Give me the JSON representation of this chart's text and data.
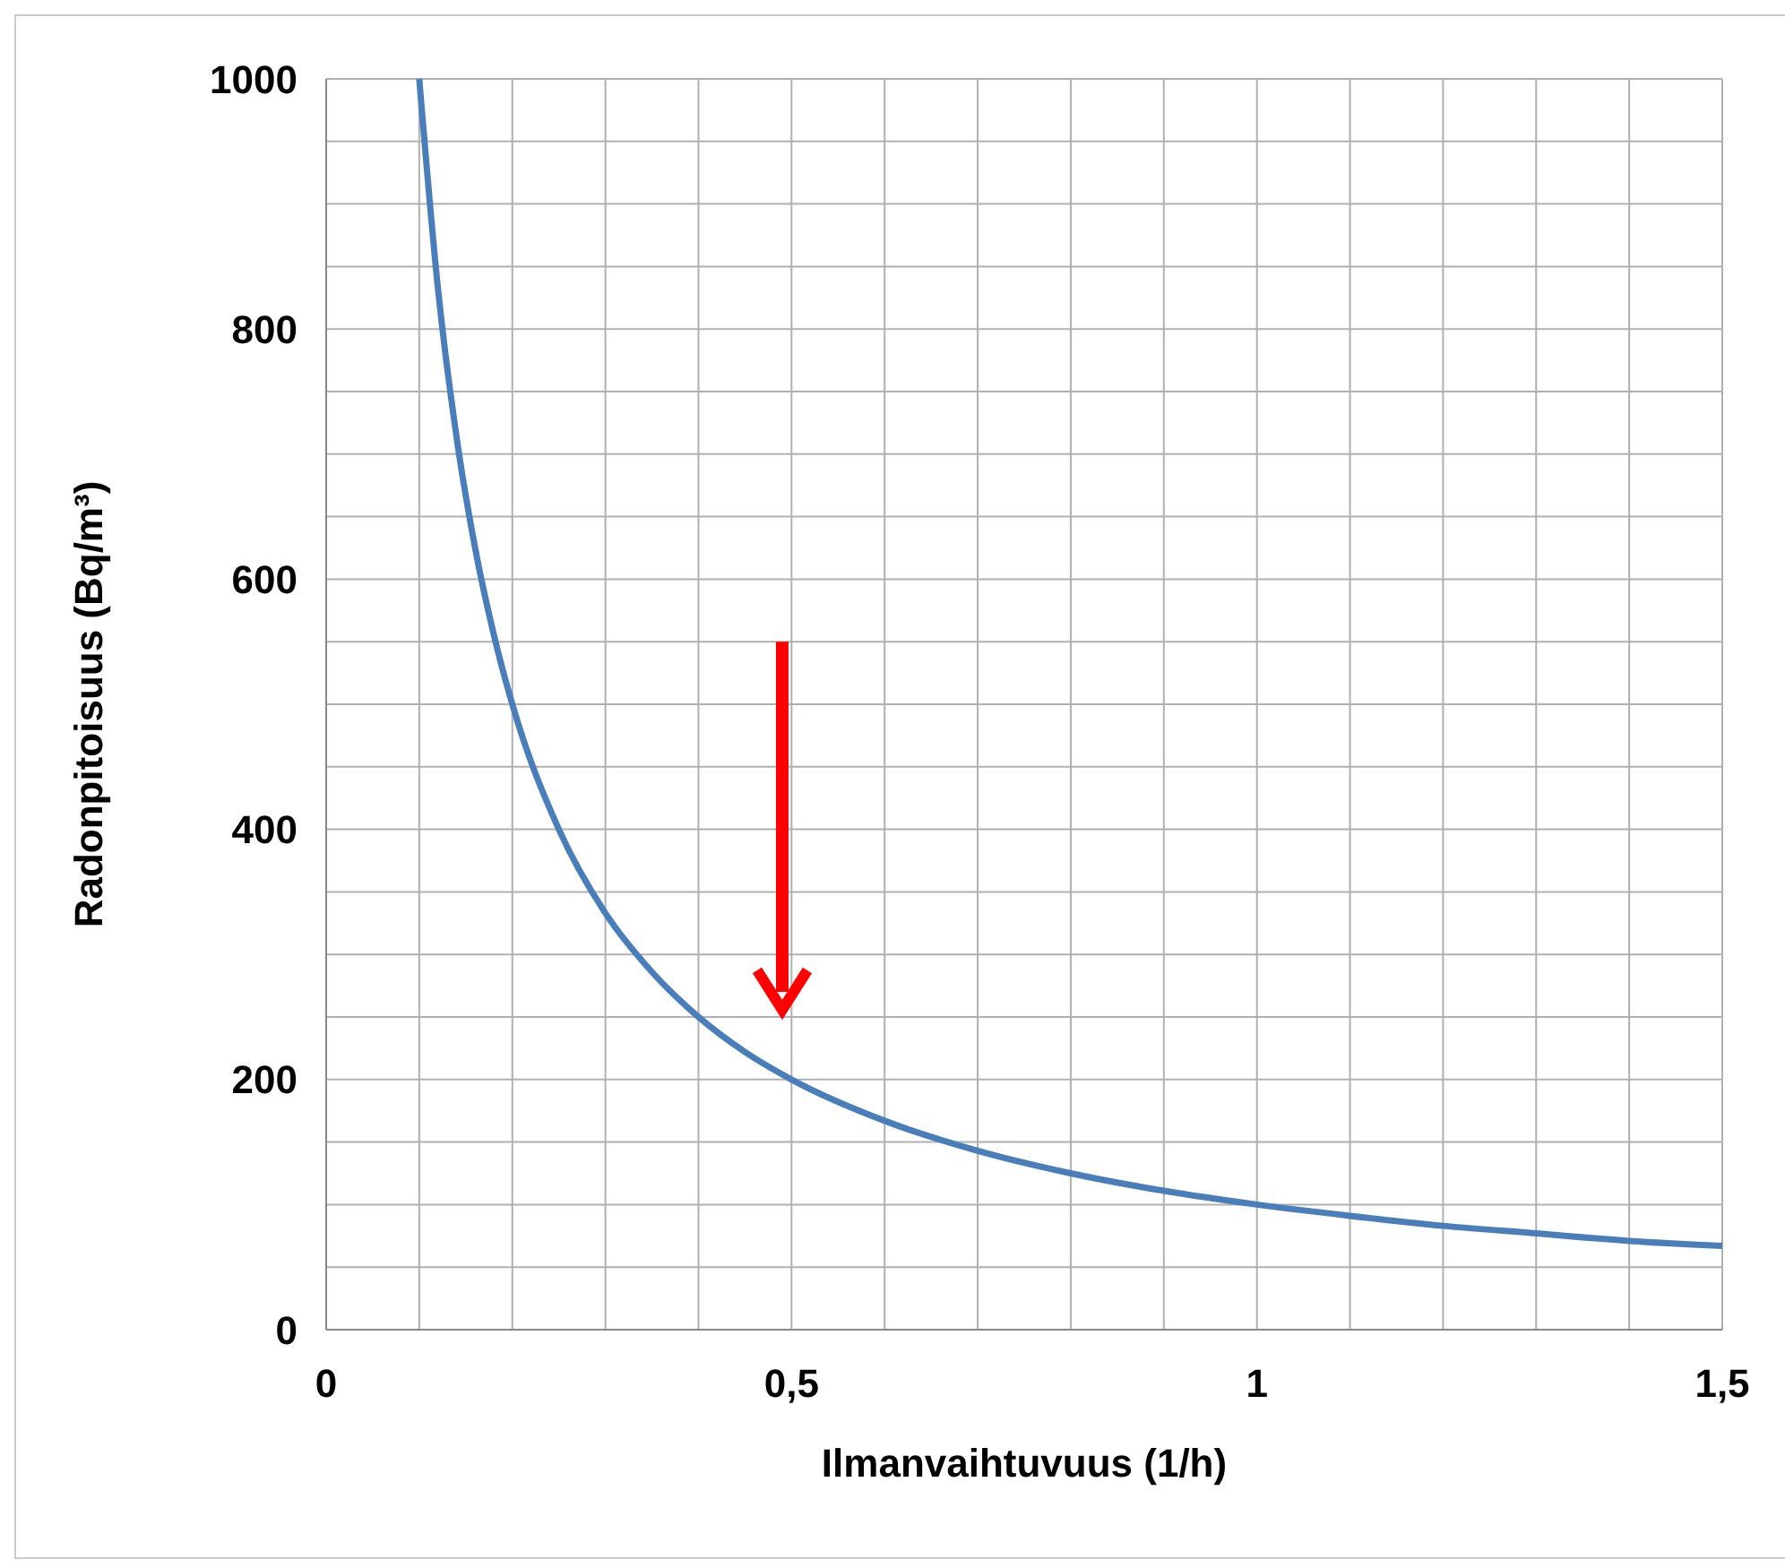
{
  "chart_data": {
    "type": "line",
    "xlabel": "Ilmanvaihtuvuus (1/h)",
    "ylabel": "Radonpitoisuus (Bq/m³)",
    "x": [
      0.1,
      0.12,
      0.14,
      0.16,
      0.18,
      0.2,
      0.25,
      0.3,
      0.35,
      0.4,
      0.45,
      0.5,
      0.6,
      0.7,
      0.8,
      0.9,
      1.0,
      1.1,
      1.2,
      1.3,
      1.4,
      1.5
    ],
    "series": [
      {
        "color": "#4a7ebb",
        "values": [
          1000,
          833,
          714,
          625,
          556,
          500,
          400,
          333,
          286,
          250,
          222,
          200,
          167,
          143,
          125,
          111,
          100,
          91,
          83,
          77,
          71,
          67
        ]
      }
    ],
    "xlim": [
      0,
      1.5
    ],
    "xticks": [
      0,
      {
        "value": 0.1,
        "label": null
      },
      {
        "value": 0.2,
        "label": null
      },
      {
        "value": 0.3,
        "label": null
      },
      {
        "value": 0.4,
        "label": null
      },
      {
        "value": 0.5,
        "label": "0,5"
      },
      {
        "value": 0.6,
        "label": null
      },
      {
        "value": 0.7,
        "label": null
      },
      {
        "value": 0.8,
        "label": null
      },
      {
        "value": 0.9,
        "label": null
      },
      1,
      {
        "value": 1.1,
        "label": null
      },
      {
        "value": 1.2,
        "label": null
      },
      {
        "value": 1.3,
        "label": null
      },
      {
        "value": 1.4,
        "label": null
      },
      {
        "value": 1.5,
        "label": "1,5"
      }
    ],
    "ylim": [
      0,
      1000
    ],
    "yticks": [
      0,
      {
        "value": 50,
        "label": null
      },
      {
        "value": 100,
        "label": null
      },
      {
        "value": 150,
        "label": null
      },
      200,
      {
        "value": 250,
        "label": null
      },
      {
        "value": 300,
        "label": null
      },
      {
        "value": 350,
        "label": null
      },
      400,
      {
        "value": 450,
        "label": null
      },
      {
        "value": 500,
        "label": null
      },
      {
        "value": 550,
        "label": null
      },
      600,
      {
        "value": 650,
        "label": null
      },
      {
        "value": 700,
        "label": null
      },
      {
        "value": 750,
        "label": null
      },
      800,
      {
        "value": 850,
        "label": null
      },
      {
        "value": 900,
        "label": null
      },
      {
        "value": 950,
        "label": null
      },
      1000
    ],
    "grid": true,
    "marker": "none",
    "line_style": "solid"
  }
}
